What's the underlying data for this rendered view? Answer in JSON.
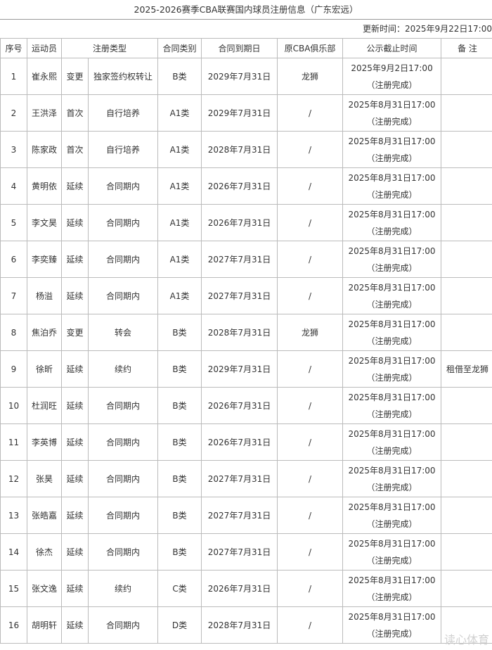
{
  "title": "2025-2026赛季CBA联赛国内球员注册信息（广东宏远）",
  "updated": "更新时间：2025年9月22日17:00",
  "headers": {
    "no": "序号",
    "player": "运动员",
    "reg_type": "注册类型",
    "contract_class": "合同类别",
    "expiry": "合同到期日",
    "prev_club": "原CBA俱乐部",
    "deadline": "公示截止时间",
    "note": "备 注"
  },
  "rows": [
    [
      "1",
      "崔永熙",
      "变更",
      "独家签约权转让",
      "B类",
      "2029年7月31日",
      "龙狮",
      "2025年9月2日17:00",
      "（注册完成）",
      ""
    ],
    [
      "2",
      "王洪泽",
      "首次",
      "自行培养",
      "A1类",
      "2029年7月31日",
      "/",
      "2025年8月31日17:00",
      "（注册完成）",
      ""
    ],
    [
      "3",
      "陈家政",
      "首次",
      "自行培养",
      "A1类",
      "2028年7月31日",
      "/",
      "2025年8月31日17:00",
      "（注册完成）",
      ""
    ],
    [
      "4",
      "黄明依",
      "延续",
      "合同期内",
      "A1类",
      "2026年7月31日",
      "/",
      "2025年8月31日17:00",
      "（注册完成）",
      ""
    ],
    [
      "5",
      "李文昊",
      "延续",
      "合同期内",
      "A1类",
      "2026年7月31日",
      "/",
      "2025年8月31日17:00",
      "（注册完成）",
      ""
    ],
    [
      "6",
      "李奕臻",
      "延续",
      "合同期内",
      "A1类",
      "2027年7月31日",
      "/",
      "2025年8月31日17:00",
      "（注册完成）",
      ""
    ],
    [
      "7",
      "杨溢",
      "延续",
      "合同期内",
      "A1类",
      "2027年7月31日",
      "/",
      "2025年8月31日17:00",
      "（注册完成）",
      ""
    ],
    [
      "8",
      "焦泊乔",
      "变更",
      "转会",
      "B类",
      "2028年7月31日",
      "龙狮",
      "2025年8月31日17:00",
      "（注册完成）",
      ""
    ],
    [
      "9",
      "徐昕",
      "延续",
      "续约",
      "B类",
      "2029年7月31日",
      "/",
      "2025年8月31日17:00",
      "（注册完成）",
      "租借至龙狮"
    ],
    [
      "10",
      "杜润旺",
      "延续",
      "合同期内",
      "B类",
      "2026年7月31日",
      "/",
      "2025年8月31日17:00",
      "（注册完成）",
      ""
    ],
    [
      "11",
      "李英博",
      "延续",
      "合同期内",
      "B类",
      "2026年7月31日",
      "/",
      "2025年8月31日17:00",
      "（注册完成）",
      ""
    ],
    [
      "12",
      "张昊",
      "延续",
      "合同期内",
      "B类",
      "2027年7月31日",
      "/",
      "2025年8月31日17:00",
      "（注册完成）",
      ""
    ],
    [
      "13",
      "张皓嘉",
      "延续",
      "合同期内",
      "B类",
      "2027年7月31日",
      "/",
      "2025年8月31日17:00",
      "（注册完成）",
      ""
    ],
    [
      "14",
      "徐杰",
      "延续",
      "合同期内",
      "B类",
      "2027年7月31日",
      "/",
      "2025年8月31日17:00",
      "（注册完成）",
      ""
    ],
    [
      "15",
      "张文逸",
      "延续",
      "续约",
      "C类",
      "2026年7月31日",
      "/",
      "2025年8月31日17:00",
      "（注册完成）",
      ""
    ],
    [
      "16",
      "胡明轩",
      "延续",
      "合同期内",
      "D类",
      "2028年7月31日",
      "/",
      "2025年8月31日17:00",
      "（注册完成）",
      ""
    ]
  ],
  "watermark": "读心体育"
}
